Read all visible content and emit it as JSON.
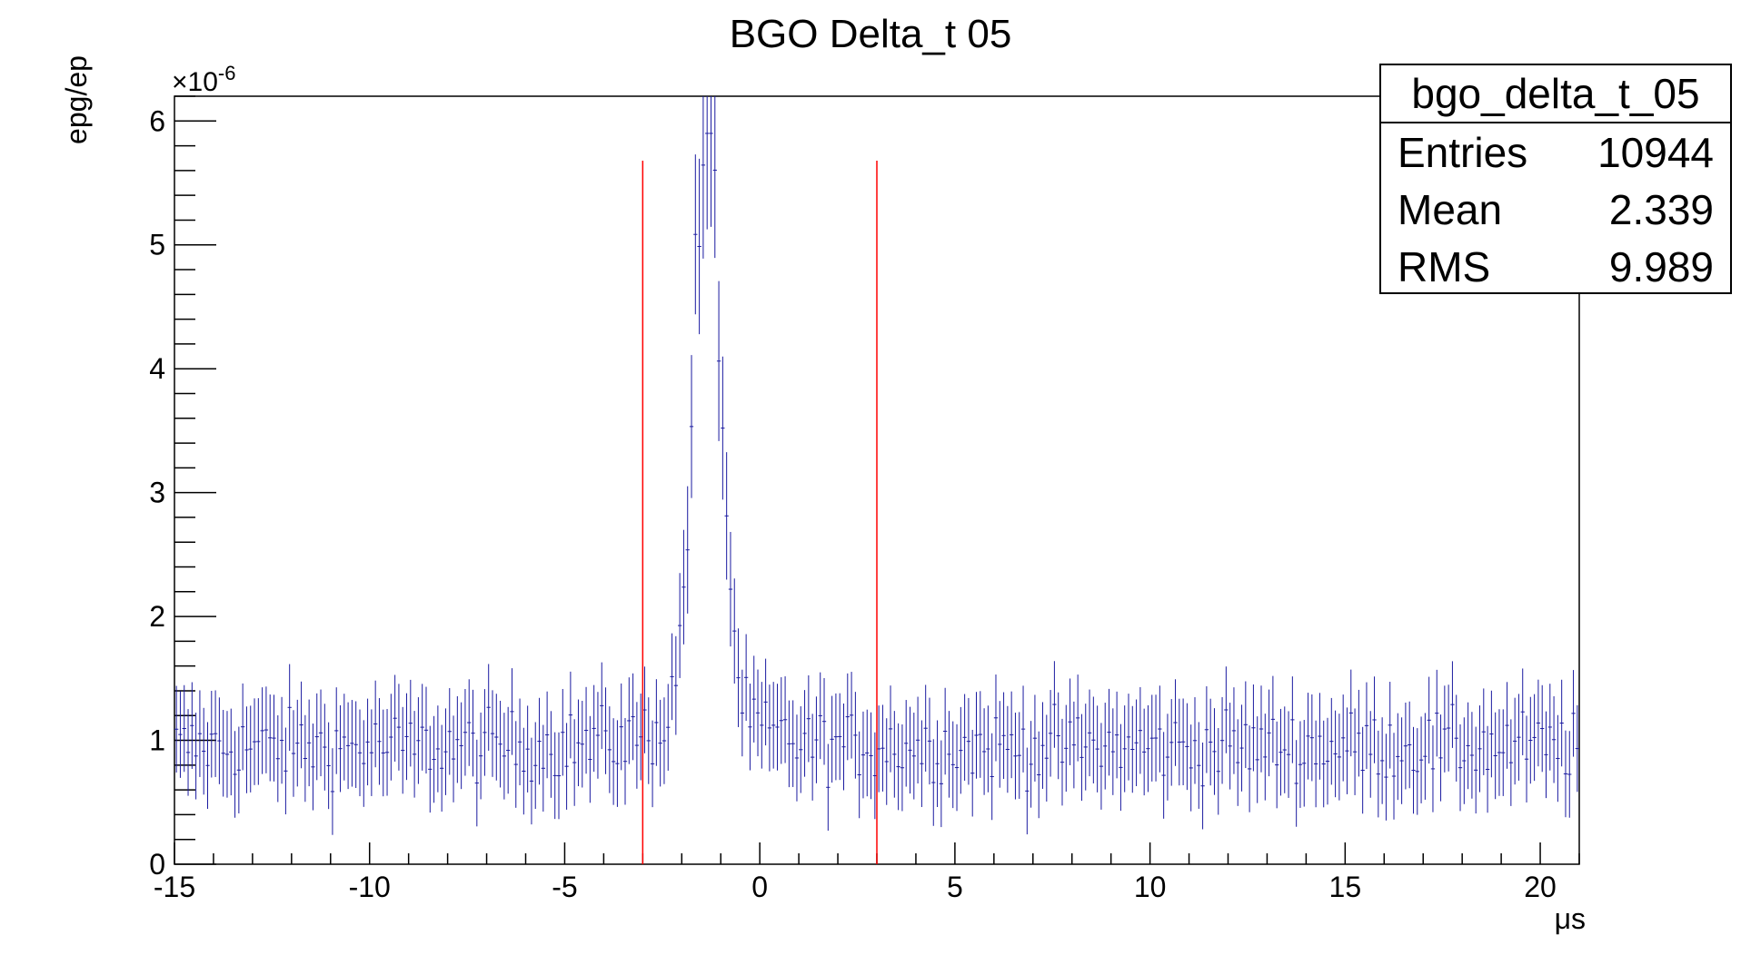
{
  "chart_data": {
    "type": "histogram",
    "title": "BGO Delta_t 05",
    "xlabel": "μs",
    "ylabel": "epg/ep",
    "y_multiplier_label": "×10",
    "y_multiplier_exp": "-6",
    "xlim": [
      -15,
      21
    ],
    "ylim": [
      0,
      6.2
    ],
    "x_ticks": [
      "-15",
      "-10",
      "-5",
      "0",
      "5",
      "10",
      "15",
      "20"
    ],
    "y_ticks": [
      "0",
      "1",
      "2",
      "3",
      "4",
      "5",
      "6"
    ],
    "bin_width": 0.1,
    "baseline_level": 0.95,
    "baseline_error": 0.35,
    "peak": {
      "center": -1.35,
      "height": 4.4,
      "width": 0.35,
      "error": 0.85
    },
    "cut_lines": [
      -3.0,
      3.0
    ],
    "colors": {
      "data": "#1a1aa0",
      "cut_line": "#ff0000",
      "axis": "#000000"
    },
    "stats_box": {
      "name": "bgo_delta_t_05",
      "rows": [
        {
          "label": "Entries",
          "value": "10944"
        },
        {
          "label": "Mean",
          "value": "2.339"
        },
        {
          "label": "RMS",
          "value": "9.989"
        }
      ]
    }
  }
}
